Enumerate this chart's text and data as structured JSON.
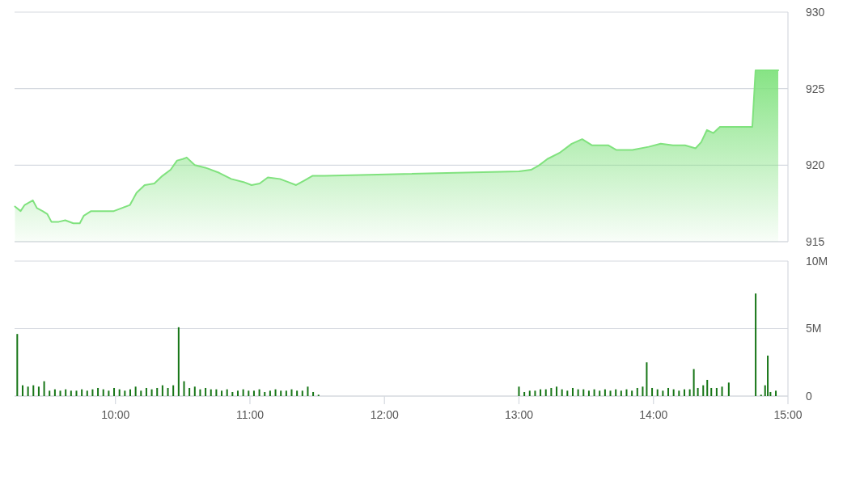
{
  "chart_data": [
    {
      "type": "area",
      "color": "#80e27e",
      "grid": "y",
      "tick_labels": "y",
      "x": [
        9.253,
        9.295,
        9.325,
        9.386,
        9.416,
        9.458,
        9.494,
        9.524,
        9.578,
        9.627,
        9.687,
        9.735,
        9.765,
        9.819,
        9.916,
        9.988,
        10.048,
        10.108,
        10.157,
        10.217,
        10.289,
        10.349,
        10.41,
        10.458,
        10.5,
        10.53,
        10.59,
        10.681,
        10.771,
        10.861,
        10.952,
        11.012,
        11.072,
        11.133,
        11.223,
        11.283,
        11.343,
        11.404,
        11.464,
        11.554,
        13.0,
        13.09,
        13.151,
        13.211,
        13.301,
        13.392,
        13.47,
        13.542,
        13.663,
        13.723,
        13.843,
        13.964,
        14.054,
        14.145,
        14.235,
        14.313,
        14.355,
        14.398,
        14.446,
        14.494,
        14.735,
        14.759,
        14.928
      ],
      "values": [
        917.3,
        917.0,
        917.4,
        917.7,
        917.2,
        917.0,
        916.8,
        916.3,
        916.3,
        916.4,
        916.2,
        916.2,
        916.7,
        917.0,
        917.0,
        917.0,
        917.2,
        917.4,
        918.2,
        918.7,
        918.8,
        919.3,
        919.7,
        920.3,
        920.4,
        920.5,
        920.0,
        919.8,
        919.5,
        919.1,
        918.9,
        918.7,
        918.8,
        919.2,
        919.1,
        918.9,
        918.7,
        919.0,
        919.3,
        919.3,
        919.6,
        919.7,
        920.0,
        920.4,
        920.8,
        921.4,
        921.7,
        921.3,
        921.3,
        921.0,
        921.0,
        921.2,
        921.4,
        921.3,
        921.3,
        921.1,
        921.5,
        922.3,
        922.1,
        922.5,
        922.5,
        926.2,
        926.2
      ],
      "xlim": [
        9.25,
        15.0
      ],
      "ylim": [
        915,
        930
      ],
      "yticks": [
        915,
        920,
        925,
        930
      ]
    },
    {
      "type": "bar",
      "color": "#167516",
      "grid": "y",
      "x": [
        9.27,
        9.31,
        9.35,
        9.39,
        9.43,
        9.47,
        9.51,
        9.55,
        9.59,
        9.63,
        9.67,
        9.71,
        9.75,
        9.79,
        9.83,
        9.87,
        9.91,
        9.95,
        9.99,
        10.03,
        10.07,
        10.11,
        10.15,
        10.19,
        10.23,
        10.27,
        10.31,
        10.35,
        10.39,
        10.43,
        10.47,
        10.51,
        10.55,
        10.59,
        10.63,
        10.67,
        10.71,
        10.75,
        10.79,
        10.83,
        10.87,
        10.91,
        10.95,
        10.99,
        11.03,
        11.07,
        11.11,
        11.15,
        11.19,
        11.23,
        11.27,
        11.31,
        11.35,
        11.39,
        11.43,
        11.47,
        11.51,
        13.0,
        13.04,
        13.08,
        13.12,
        13.16,
        13.2,
        13.24,
        13.28,
        13.32,
        13.36,
        13.4,
        13.44,
        13.48,
        13.52,
        13.56,
        13.6,
        13.64,
        13.68,
        13.72,
        13.76,
        13.8,
        13.84,
        13.88,
        13.92,
        13.95,
        13.99,
        14.03,
        14.07,
        14.11,
        14.15,
        14.19,
        14.23,
        14.27,
        14.3,
        14.33,
        14.37,
        14.4,
        14.43,
        14.47,
        14.51,
        14.56,
        14.76,
        14.8,
        14.83,
        14.85,
        14.87,
        14.91
      ],
      "values": [
        4.6,
        0.8,
        0.7,
        0.8,
        0.7,
        1.1,
        0.4,
        0.5,
        0.4,
        0.5,
        0.4,
        0.4,
        0.5,
        0.4,
        0.5,
        0.6,
        0.5,
        0.4,
        0.6,
        0.5,
        0.4,
        0.5,
        0.7,
        0.4,
        0.6,
        0.5,
        0.6,
        0.8,
        0.6,
        0.8,
        5.1,
        1.1,
        0.6,
        0.7,
        0.5,
        0.6,
        0.5,
        0.5,
        0.4,
        0.5,
        0.3,
        0.4,
        0.5,
        0.4,
        0.4,
        0.5,
        0.3,
        0.4,
        0.5,
        0.4,
        0.4,
        0.5,
        0.4,
        0.4,
        0.7,
        0.3,
        0.1,
        0.7,
        0.3,
        0.4,
        0.4,
        0.5,
        0.5,
        0.6,
        0.7,
        0.5,
        0.4,
        0.6,
        0.5,
        0.5,
        0.4,
        0.5,
        0.4,
        0.5,
        0.4,
        0.5,
        0.4,
        0.5,
        0.4,
        0.6,
        0.7,
        2.5,
        0.6,
        0.5,
        0.4,
        0.6,
        0.5,
        0.4,
        0.5,
        0.5,
        2.0,
        0.6,
        0.8,
        1.2,
        0.6,
        0.6,
        0.7,
        1.0,
        7.6,
        0.1,
        0.8,
        3.0,
        0.3,
        0.4
      ],
      "xlim": [
        9.25,
        15.0
      ],
      "ylim": [
        0,
        10
      ],
      "xticks": [
        {
          "value": 10,
          "label": "10:00"
        },
        {
          "value": 11,
          "label": "11:00"
        },
        {
          "value": 12,
          "label": "12:00"
        },
        {
          "value": 13,
          "label": "13:00"
        },
        {
          "value": 14,
          "label": "14:00"
        },
        {
          "value": 15,
          "label": "15:00"
        }
      ],
      "yticks": [
        0,
        {
          "value": 5,
          "label": "5M"
        },
        {
          "value": 10,
          "label": "10M"
        }
      ]
    }
  ]
}
